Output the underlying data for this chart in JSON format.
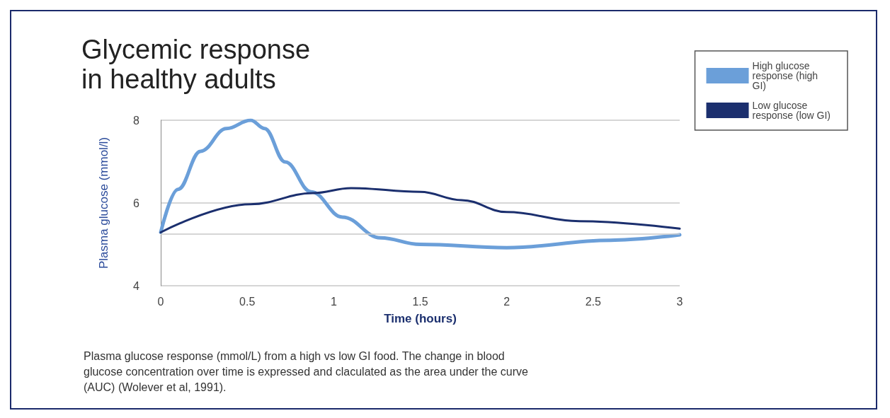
{
  "chart_data": {
    "type": "line",
    "title": "Glycemic response\nin healthy adults",
    "xlabel": "Time (hours)",
    "ylabel": "Plasma glucose (mmol/l)",
    "annotations": [
      "Plasma glucose response (mmol/L) from a high vs low GI food. The change in blood glucose concentration over time is expressed and claculated as the area under the curve (AUC) (Wolever et al, 1991)."
    ],
    "series": [
      {
        "name": "High glucose response (high GI)",
        "color": "#6b9fd9",
        "x": [
          0,
          0.1,
          0.23,
          0.38,
          0.52,
          0.6,
          0.72,
          0.87,
          1.05,
          1.27,
          1.5,
          2.0,
          2.6,
          3
        ],
        "values": [
          5.29,
          6.33,
          7.25,
          7.8,
          8.0,
          7.8,
          6.99,
          6.27,
          5.66,
          5.16,
          5.0,
          4.92,
          5.1,
          5.23
        ]
      },
      {
        "name": "Low glucose response (low GI)",
        "color": "#1b2f6e",
        "x": [
          0,
          0.52,
          0.88,
          1.1,
          1.5,
          1.74,
          2.0,
          2.42,
          3
        ],
        "values": [
          5.29,
          5.97,
          6.24,
          6.36,
          6.27,
          6.07,
          5.78,
          5.56,
          5.38
        ]
      }
    ],
    "xlim": [
      0,
      3
    ],
    "xticks": [
      0,
      0.5,
      1,
      1.5,
      2,
      2.5,
      3
    ],
    "ylim": [
      4,
      8
    ],
    "yticks": [
      4,
      6,
      8
    ],
    "ref_lines": [
      {
        "axis": "y",
        "value": 5.25,
        "color": "#c8c8c8"
      }
    ],
    "grid": "y",
    "legend": "top right",
    "marker": "none",
    "line_style": "solid"
  }
}
